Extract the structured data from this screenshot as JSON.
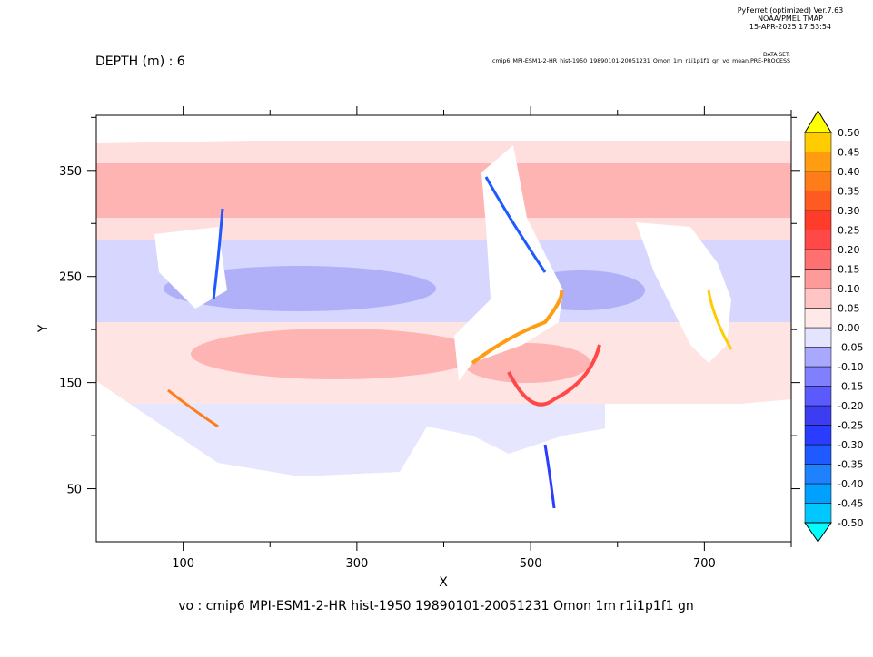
{
  "chart_data": {
    "type": "filled-contour",
    "header": [
      "PyFerret (optimized) Ver.7.63",
      "NOAA/PMEL TMAP",
      "15-APR-2025 17:53:54"
    ],
    "dataset_label": "DATA SET:",
    "dataset": "cmip6_MPI-ESM1-2-HR_hist-1950_19890101-20051231_Omon_1m_r1i1p1f1_gn_vo_mean.PRE-PROCESS",
    "title": "DEPTH (m) : 6",
    "x_label": "X",
    "y_label": "Y",
    "caption": "vo : cmip6 MPI-ESM1-2-HR hist-1950 19890101-20051231 Omon 1m r1i1p1f1 gn",
    "xlim": [
      0,
      800
    ],
    "ylim": [
      0,
      402
    ],
    "xticks": [
      100,
      300,
      500,
      700
    ],
    "x_minor_ticks": [
      200,
      400,
      600,
      800
    ],
    "yticks": [
      50,
      150,
      250,
      350
    ],
    "y_minor_ticks": [
      100,
      200,
      300,
      400
    ],
    "levels": [
      {
        "value": -0.5,
        "label": "-0.50"
      },
      {
        "value": -0.45,
        "label": "-0.45"
      },
      {
        "value": -0.4,
        "label": "-0.40"
      },
      {
        "value": -0.35,
        "label": "-0.35"
      },
      {
        "value": -0.3,
        "label": "-0.30"
      },
      {
        "value": -0.25,
        "label": "-0.25"
      },
      {
        "value": -0.2,
        "label": "-0.20"
      },
      {
        "value": -0.15,
        "label": "-0.15"
      },
      {
        "value": -0.1,
        "label": "-0.10"
      },
      {
        "value": -0.05,
        "label": "-0.05"
      },
      {
        "value": 0,
        "label": "0.00"
      },
      {
        "value": 0.05,
        "label": "0.05"
      },
      {
        "value": 0.1,
        "label": "0.10"
      },
      {
        "value": 0.15,
        "label": "0.15"
      },
      {
        "value": 0.2,
        "label": "0.20"
      },
      {
        "value": 0.25,
        "label": "0.25"
      },
      {
        "value": 0.3,
        "label": "0.30"
      },
      {
        "value": 0.35,
        "label": "0.35"
      },
      {
        "value": 0.4,
        "label": "0.40"
      },
      {
        "value": 0.45,
        "label": "0.45"
      },
      {
        "value": 0.5,
        "label": "0.50"
      }
    ],
    "under_color": "#00ffff",
    "over_color": "#ffff00",
    "colors": [
      "#00c8ff",
      "#00a0ff",
      "#1e82ff",
      "#1e5aff",
      "#2a3cff",
      "#3c3cf0",
      "#5a5aff",
      "#8080ff",
      "#a8a8ff",
      "#e4e4ff",
      "#ffe8e8",
      "#ffc4c4",
      "#ff9a9a",
      "#ff7070",
      "#ff4848",
      "#ff3c2a",
      "#ff5a22",
      "#ff7c1a",
      "#ff9c12",
      "#ffcc00"
    ]
  }
}
